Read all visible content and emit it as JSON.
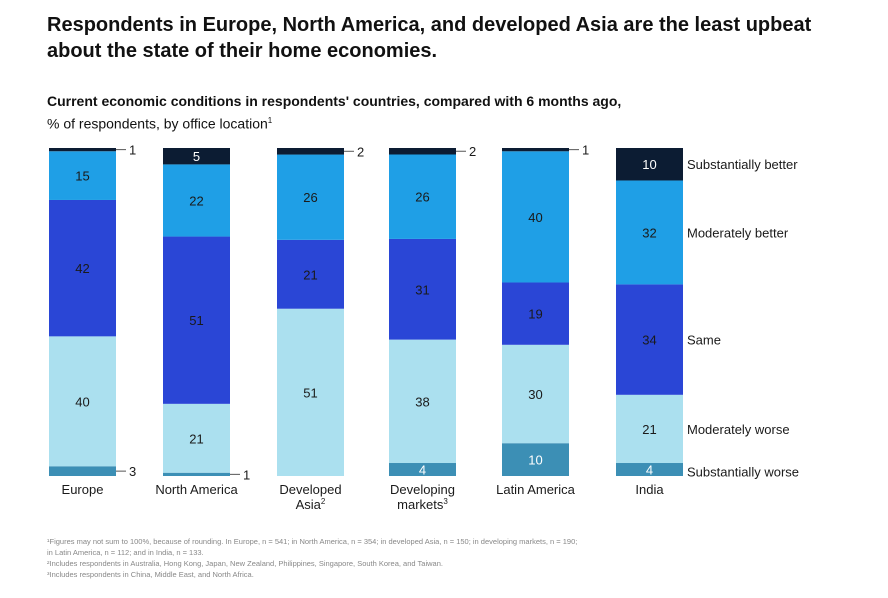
{
  "headline": "Respondents in Europe, North America, and developed Asia are the least upbeat about the state of their home economies.",
  "subtitle_bold": "Current economic conditions in respondents' countries, compared with 6 months ago,",
  "subtitle_normal": "% of respondents, by office location",
  "subtitle_note": "1",
  "colors": {
    "substantially_better": "#0c1c33",
    "moderately_better": "#1f9fe6",
    "same": "#2a46d6",
    "moderately_worse": "#abe0ef",
    "substantially_worse": "#3c8fb5"
  },
  "chart_data": {
    "type": "bar",
    "stacked": true,
    "orientation": "vertical",
    "unit": "% of respondents",
    "categories": [
      "Europe",
      "North America",
      "Developed Asia",
      "Developing markets",
      "Latin America",
      "India"
    ],
    "category_labels": [
      {
        "lines": [
          "Europe"
        ],
        "sup": ""
      },
      {
        "lines": [
          "North America"
        ],
        "sup": ""
      },
      {
        "lines": [
          "Developed",
          "Asia"
        ],
        "sup": "2"
      },
      {
        "lines": [
          "Developing",
          "markets"
        ],
        "sup": "3"
      },
      {
        "lines": [
          "Latin America"
        ],
        "sup": ""
      },
      {
        "lines": [
          "India"
        ],
        "sup": ""
      }
    ],
    "series": [
      {
        "name": "Substantially worse",
        "key": "substantially_worse",
        "values": [
          3,
          1,
          0,
          4,
          10,
          4
        ]
      },
      {
        "name": "Moderately worse",
        "key": "moderately_worse",
        "values": [
          40,
          21,
          51,
          38,
          30,
          21
        ]
      },
      {
        "name": "Same",
        "key": "same",
        "values": [
          42,
          51,
          21,
          31,
          19,
          34
        ]
      },
      {
        "name": "Moderately better",
        "key": "moderately_better",
        "values": [
          15,
          22,
          26,
          26,
          40,
          32
        ]
      },
      {
        "name": "Substantially better",
        "key": "substantially_better",
        "values": [
          1,
          5,
          2,
          2,
          1,
          10
        ]
      }
    ],
    "legend_placement": "right",
    "grid": false
  },
  "footnotes": [
    "¹Figures may not sum to 100%, because of rounding. In Europe, n = 541; in North America, n = 354; in developed Asia, n = 150; in developing markets, n = 190;",
    "in Latin America, n = 112; and in India, n = 133.",
    "²Includes respondents in Australia, Hong Kong, Japan, New Zealand, Philippines, Singapore, South Korea, and Taiwan.",
    "³Includes respondents in China, Middle East, and North Africa."
  ]
}
